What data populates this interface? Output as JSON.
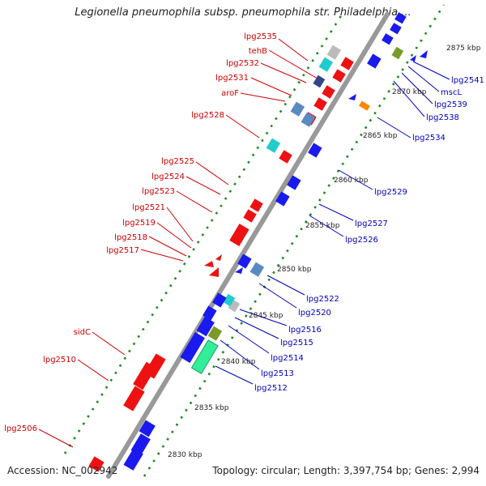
{
  "title": "Legionella pneumophila subsp. pneumophila str. Philadelphia ...",
  "accession": "Accession: NC_002942",
  "topology": "Topology: circular; Length: 3,397,754 bp; Genes: 2,994",
  "scale_labels": [
    "2875 kbp",
    "2870 kbp",
    "2865 kbp",
    "2860 kbp",
    "2855 kbp",
    "2850 kbp",
    "2845 kbp",
    "2840 kbp",
    "2835 kbp",
    "2830 kbp"
  ],
  "genes_left": [
    "lpg2535",
    "tehB",
    "lpg2532",
    "lpg2531",
    "aroF",
    "lpg2528",
    "lpg2525",
    "lpg2524",
    "lpg2523",
    "lpg2521",
    "lpg2519",
    "lpg2518",
    "lpg2517",
    "sidC",
    "lpg2510",
    "lpg2506"
  ],
  "genes_right": [
    "lpg2541",
    "mscL",
    "lpg2539",
    "lpg2538",
    "lpg2534",
    "lpg2529",
    "lpg2527",
    "lpg2526",
    "lpg2522",
    "lpg2520",
    "lpg2516",
    "lpg2515",
    "lpg2514",
    "lpg2513",
    "lpg2512"
  ],
  "colors": {
    "forward_gene": "#ee1111",
    "reverse_gene": "#1a1aee",
    "label_left": "#cc0000",
    "label_right": "#0000bb",
    "backbone": "#999999",
    "tick_dots": "#1a8a1a",
    "steelblue": "#5a8ac0",
    "cyan": "#22cccc",
    "olive": "#7a9a2a",
    "orange": "#ff8800",
    "mint": "#33ee99",
    "gray": "#bbbbbb",
    "navy": "#334488"
  }
}
